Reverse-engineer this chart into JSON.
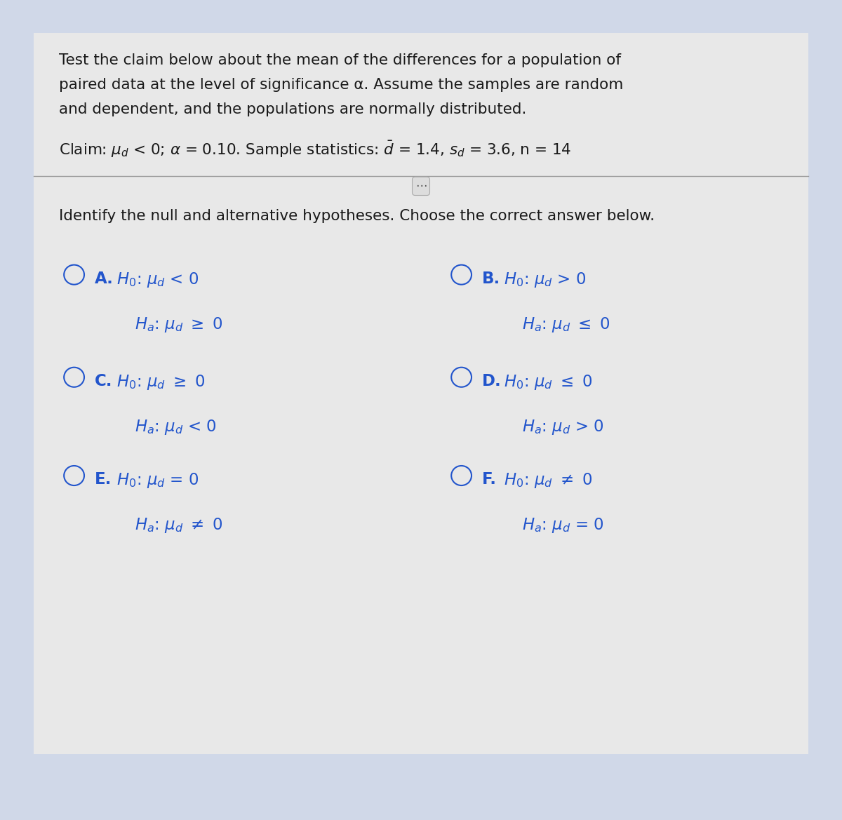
{
  "bg_color": "#d0d8e8",
  "panel_color": "#e8e8e8",
  "text_color": "#1a1a1a",
  "blue_color": "#2255cc",
  "intro_text_line1": "Test the claim below about the mean of the differences for a population of",
  "intro_text_line2": "paired data at the level of significance α. Assume the samples are random",
  "intro_text_line3": "and dependent, and the populations are normally distributed.",
  "claim_line": "Claim: μₙ < 0; α = 0.10. Sample statistics: d̅ = 1.4, sₙ = 3.6, n = 14",
  "identify_text": "Identify the null and alternative hypotheses. Choose the correct answer below.",
  "options": [
    {
      "label": "A.",
      "h0": "H₀: μₙ < 0",
      "ha": "Hₐ: μₙ ≥ 0",
      "col": 0
    },
    {
      "label": "B.",
      "h0": "H₀: μₙ > 0",
      "ha": "Hₐ: μₙ ≤ 0",
      "col": 1
    },
    {
      "label": "C.",
      "h0": "H₀: μₙ ≥ 0",
      "ha": "Hₐ: μₙ < 0",
      "col": 0
    },
    {
      "label": "D.",
      "h0": "H₀: μₙ ≤ 0",
      "ha": "Hₐ: μₙ > 0",
      "col": 1
    },
    {
      "label": "E.",
      "h0": "H₀: μₙ = 0",
      "ha": "Hₐ: μₙ ≠ 0",
      "col": 0
    },
    {
      "label": "F.",
      "h0": "H₀: μₙ ≠ 0",
      "ha": "Hₐ: μₙ = 0",
      "col": 1
    }
  ],
  "figsize": [
    12.0,
    11.69
  ],
  "dpi": 100
}
